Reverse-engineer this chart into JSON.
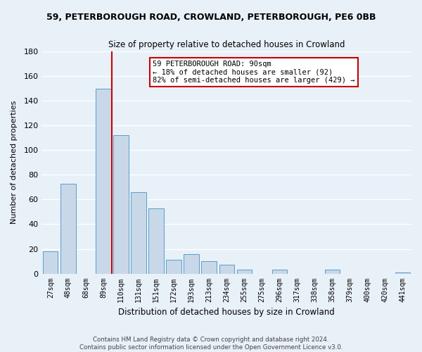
{
  "title": "59, PETERBOROUGH ROAD, CROWLAND, PETERBOROUGH, PE6 0BB",
  "subtitle": "Size of property relative to detached houses in Crowland",
  "xlabel": "Distribution of detached houses by size in Crowland",
  "ylabel": "Number of detached properties",
  "categories": [
    "27sqm",
    "48sqm",
    "68sqm",
    "89sqm",
    "110sqm",
    "131sqm",
    "151sqm",
    "172sqm",
    "193sqm",
    "213sqm",
    "234sqm",
    "255sqm",
    "275sqm",
    "296sqm",
    "317sqm",
    "338sqm",
    "358sqm",
    "379sqm",
    "400sqm",
    "420sqm",
    "441sqm"
  ],
  "values": [
    18,
    73,
    0,
    150,
    112,
    66,
    53,
    11,
    16,
    10,
    7,
    3,
    0,
    3,
    0,
    0,
    3,
    0,
    0,
    0,
    1
  ],
  "bar_color": "#c8d8e8",
  "bar_edge_color": "#5a9dc8",
  "highlight_line_color": "#cc0000",
  "ylim": [
    0,
    180
  ],
  "yticks": [
    0,
    20,
    40,
    60,
    80,
    100,
    120,
    140,
    160,
    180
  ],
  "annotation_title": "59 PETERBOROUGH ROAD: 90sqm",
  "annotation_line1": "← 18% of detached houses are smaller (92)",
  "annotation_line2": "82% of semi-detached houses are larger (429) →",
  "annotation_box_color": "#ffffff",
  "annotation_box_edge": "#cc0000",
  "footer_line1": "Contains HM Land Registry data © Crown copyright and database right 2024.",
  "footer_line2": "Contains public sector information licensed under the Open Government Licence v3.0.",
  "background_color": "#e8f0f8",
  "grid_color": "#ffffff"
}
